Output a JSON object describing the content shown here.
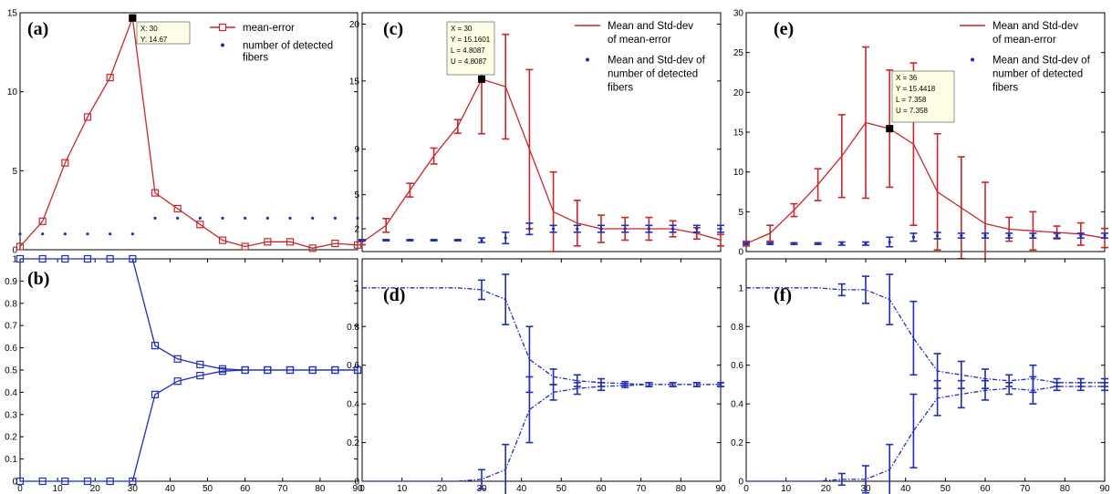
{
  "colors": {
    "red": "#c8262b",
    "blue": "#1f2db8",
    "tip_bg": "#ffffe6"
  },
  "chart_data": [
    {
      "panel": "(a)",
      "type": "line",
      "x": [
        0,
        6,
        12,
        18,
        24,
        30,
        36,
        42,
        48,
        54,
        60,
        66,
        72,
        78,
        84,
        90
      ],
      "xlim": [
        0,
        90
      ],
      "ylim": [
        0,
        15
      ],
      "yticks": [
        0,
        5,
        10,
        15
      ],
      "series": [
        {
          "name": "mean-error",
          "color": "red",
          "marker": "square",
          "line": "solid",
          "values": [
            0.2,
            1.8,
            5.5,
            8.4,
            10.9,
            14.67,
            3.6,
            2.6,
            1.6,
            0.6,
            0.2,
            0.5,
            0.5,
            0.1,
            0.4,
            0.3
          ]
        },
        {
          "name": "number of detected\nfibers",
          "color": "blue",
          "marker": "dot",
          "line": "none",
          "values": [
            1,
            1,
            1,
            1,
            1,
            1,
            2,
            2,
            2,
            2,
            2,
            2,
            2,
            2,
            2,
            2
          ]
        }
      ],
      "tooltip": {
        "lines": [
          "X: 30",
          "Y: 14.67"
        ],
        "x": 30,
        "y": 14.67
      },
      "legend": "top-right"
    },
    {
      "panel": "(b)",
      "type": "line",
      "x": [
        0,
        6,
        12,
        18,
        24,
        30,
        36,
        42,
        48,
        54,
        60,
        66,
        72,
        78,
        84,
        90
      ],
      "xlim": [
        0,
        90
      ],
      "ylim": [
        0,
        1
      ],
      "yticks": [
        0,
        0.1,
        0.2,
        0.3,
        0.4,
        0.5,
        0.6,
        0.7,
        0.8,
        0.9,
        1
      ],
      "xticks": [
        0,
        10,
        20,
        30,
        40,
        50,
        60,
        70,
        80,
        90
      ],
      "series": [
        {
          "color": "blue",
          "marker": "square",
          "line": "solid",
          "values": [
            1,
            1,
            1,
            1,
            1,
            1,
            0.61,
            0.55,
            0.525,
            0.505,
            0.5,
            0.5,
            0.5,
            0.5,
            0.5,
            0.5
          ]
        },
        {
          "color": "blue",
          "marker": "square",
          "line": "solid",
          "values": [
            0,
            0,
            0,
            0,
            0,
            0,
            0.39,
            0.45,
            0.475,
            0.495,
            0.5,
            0.5,
            0.5,
            0.5,
            0.5,
            0.5
          ]
        }
      ]
    },
    {
      "panel": "(c)",
      "type": "line",
      "x": [
        0,
        6,
        12,
        18,
        24,
        30,
        36,
        42,
        48,
        54,
        60,
        66,
        72,
        78,
        84,
        90
      ],
      "xlim": [
        0,
        90
      ],
      "ylim": [
        0,
        21
      ],
      "yticks": [
        2,
        5,
        9,
        15,
        20
      ],
      "series": [
        {
          "name": "Mean and Std-dev\n of mean-error",
          "color": "red",
          "marker": "none",
          "line": "solid",
          "values": [
            0.8,
            2.3,
            5.4,
            8.4,
            11.0,
            15.16,
            14.5,
            9.0,
            3.5,
            2.5,
            2.0,
            2.0,
            2.0,
            2.0,
            1.6,
            1.0
          ],
          "err": [
            0.2,
            0.6,
            0.6,
            0.7,
            0.6,
            4.8,
            4.6,
            7.0,
            3.5,
            2.0,
            1.2,
            1.0,
            1.0,
            0.7,
            0.5,
            0.5
          ]
        },
        {
          "name": "Mean and Std-dev of\nnumber of detected\nfibers",
          "color": "blue",
          "marker": "dot",
          "line": "none",
          "values": [
            1,
            1,
            1,
            1,
            1,
            1,
            1.2,
            2.0,
            2.0,
            2.0,
            2.0,
            2.0,
            2.0,
            2.0,
            2.0,
            2.0
          ],
          "err": [
            0.05,
            0.05,
            0.05,
            0.05,
            0.05,
            0.2,
            0.5,
            0.5,
            0.3,
            0.3,
            0.3,
            0.3,
            0.3,
            0.3,
            0.3,
            0.3
          ]
        }
      ],
      "tooltip": {
        "lines": [
          "X = 30",
          "Y = 15.1601",
          "L = 4.8087",
          "U = 4.8087"
        ],
        "x": 30,
        "y": 15.16
      },
      "legend": "top-right"
    },
    {
      "panel": "(d)",
      "type": "line",
      "x": [
        0,
        6,
        12,
        18,
        24,
        30,
        36,
        42,
        48,
        54,
        60,
        66,
        72,
        78,
        84,
        90
      ],
      "xlim": [
        0,
        90
      ],
      "ylim": [
        0,
        1.15
      ],
      "yticks": [
        0,
        0.2,
        0.4,
        0.6,
        0.8,
        1
      ],
      "xticks": [
        0,
        10,
        20,
        30,
        40,
        50,
        60,
        70,
        80,
        90
      ],
      "series": [
        {
          "color": "blue",
          "marker": "none",
          "line": "dashdot",
          "values": [
            1,
            1,
            1,
            1,
            1,
            0.99,
            0.94,
            0.63,
            0.54,
            0.52,
            0.51,
            0.505,
            0.5,
            0.5,
            0.5,
            0.5
          ],
          "err": [
            0,
            0,
            0,
            0,
            0,
            0.05,
            0.13,
            0.17,
            0.04,
            0.03,
            0.02,
            0.01,
            0.01,
            0.01,
            0.01,
            0.01
          ]
        },
        {
          "color": "blue",
          "marker": "none",
          "line": "dashdot",
          "values": [
            0,
            0,
            0,
            0,
            0,
            0.01,
            0.06,
            0.37,
            0.46,
            0.48,
            0.49,
            0.495,
            0.5,
            0.5,
            0.5,
            0.5
          ],
          "err": [
            0,
            0,
            0,
            0,
            0,
            0.05,
            0.13,
            0.17,
            0.04,
            0.03,
            0.02,
            0.01,
            0.01,
            0.01,
            0.01,
            0.01
          ]
        }
      ]
    },
    {
      "panel": "(e)",
      "type": "line",
      "x": [
        0,
        6,
        12,
        18,
        24,
        30,
        36,
        42,
        48,
        54,
        60,
        66,
        72,
        78,
        84,
        90
      ],
      "xlim": [
        0,
        90
      ],
      "ylim": [
        0,
        30
      ],
      "yticks": [
        0,
        5,
        10,
        15,
        20,
        25,
        30
      ],
      "series": [
        {
          "name": "Mean and Std-dev\n of mean-error",
          "color": "red",
          "marker": "none",
          "line": "solid",
          "values": [
            1,
            2.3,
            5.2,
            8.4,
            12.0,
            16.2,
            15.44,
            13.5,
            7.5,
            5.5,
            3.5,
            2.8,
            2.6,
            2.4,
            2.2,
            1.7
          ],
          "err": [
            0.3,
            1.0,
            0.8,
            2.0,
            5.2,
            9.5,
            7.358,
            10.2,
            7.3,
            6.4,
            5.2,
            1.5,
            2.4,
            0.8,
            1.4,
            1.2
          ]
        },
        {
          "name": "Mean and Std-dev of\nnumber of detected\nfibers",
          "color": "blue",
          "marker": "dot",
          "line": "none",
          "values": [
            1,
            1,
            1,
            1,
            1,
            1,
            1.2,
            1.8,
            2.0,
            2.0,
            2.0,
            2.0,
            2.0,
            2.0,
            2.0,
            2.0
          ],
          "err": [
            0.1,
            0.1,
            0.1,
            0.1,
            0.2,
            0.2,
            0.6,
            0.5,
            0.4,
            0.3,
            0.3,
            0.3,
            0.3,
            0.3,
            0.3,
            0.3
          ]
        }
      ],
      "tooltip": {
        "lines": [
          "X = 36",
          "Y = 15.4418",
          "L = 7.358",
          "U = 7.358"
        ],
        "x": 36,
        "y": 15.44
      },
      "legend": "top-right"
    },
    {
      "panel": "(f)",
      "type": "line",
      "x": [
        0,
        6,
        12,
        18,
        24,
        30,
        36,
        42,
        48,
        54,
        60,
        66,
        72,
        78,
        84,
        90
      ],
      "xlim": [
        0,
        90
      ],
      "ylim": [
        0,
        1.15
      ],
      "yticks": [
        0,
        0.2,
        0.4,
        0.6,
        0.8,
        1
      ],
      "xticks": [
        0,
        10,
        20,
        30,
        40,
        50,
        60,
        70,
        80,
        90
      ],
      "series": [
        {
          "color": "blue",
          "marker": "none",
          "line": "dashdot",
          "values": [
            1,
            1,
            1,
            1,
            0.99,
            0.99,
            0.94,
            0.74,
            0.57,
            0.55,
            0.53,
            0.52,
            0.53,
            0.51,
            0.51,
            0.51
          ],
          "err": [
            0,
            0,
            0,
            0,
            0.03,
            0.07,
            0.13,
            0.19,
            0.09,
            0.07,
            0.05,
            0.03,
            0.07,
            0.02,
            0.02,
            0.02
          ]
        },
        {
          "color": "blue",
          "marker": "none",
          "line": "dashdot",
          "values": [
            0,
            0,
            0,
            0,
            0.01,
            0.01,
            0.06,
            0.26,
            0.43,
            0.45,
            0.47,
            0.48,
            0.47,
            0.49,
            0.49,
            0.49
          ],
          "err": [
            0,
            0,
            0,
            0,
            0.03,
            0.07,
            0.13,
            0.19,
            0.09,
            0.07,
            0.05,
            0.03,
            0.07,
            0.02,
            0.02,
            0.02
          ]
        }
      ]
    }
  ]
}
